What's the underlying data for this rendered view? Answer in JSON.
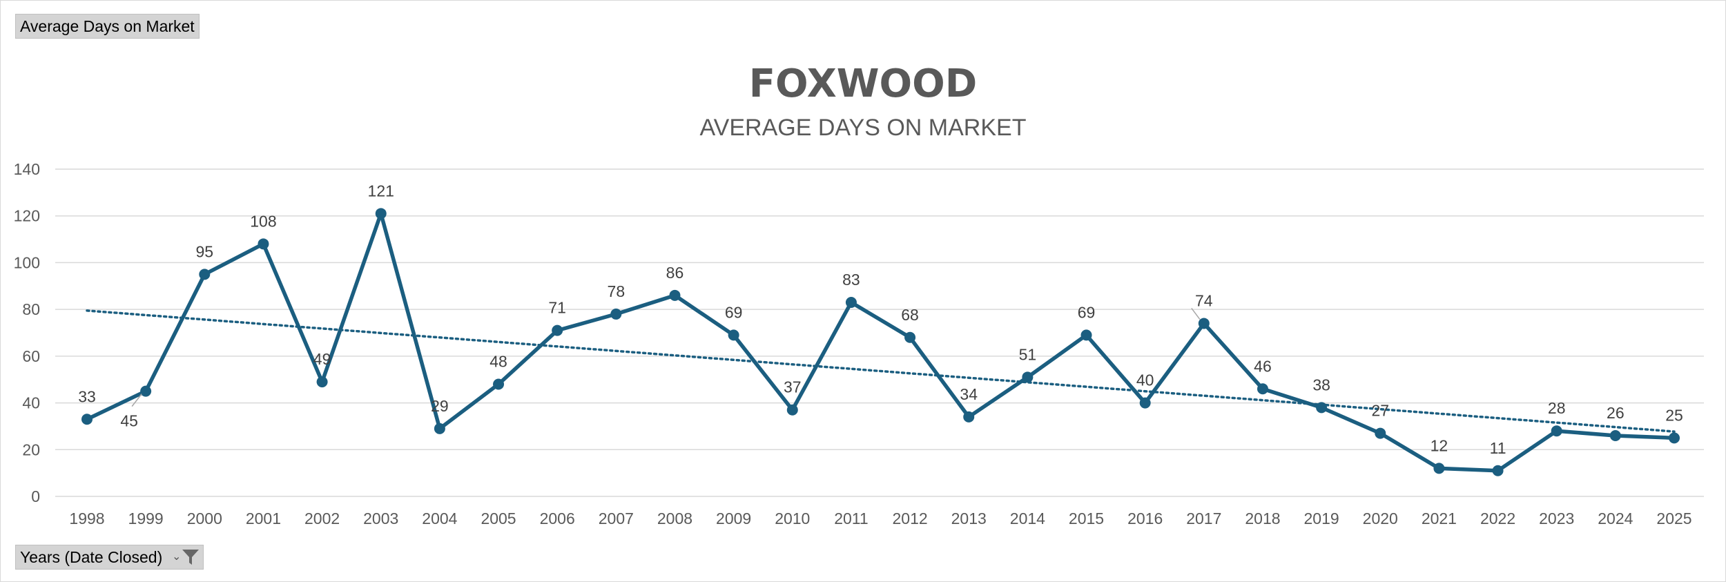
{
  "field_buttons": {
    "top_label": "Average Days on Market",
    "bottom_label": "Years (Date Closed)"
  },
  "icons": {
    "filter": "filter-funnel-icon",
    "dropdown": "dropdown-arrow-icon"
  },
  "chart_data": {
    "type": "line",
    "title": "FOXWOOD",
    "subtitle": "AVERAGE DAYS ON MARKET",
    "xlabel": "",
    "ylabel": "",
    "categories": [
      "1998",
      "1999",
      "2000",
      "2001",
      "2002",
      "2003",
      "2004",
      "2005",
      "2006",
      "2007",
      "2008",
      "2009",
      "2010",
      "2011",
      "2012",
      "2013",
      "2014",
      "2015",
      "2016",
      "2017",
      "2018",
      "2019",
      "2020",
      "2021",
      "2022",
      "2023",
      "2024",
      "2025"
    ],
    "series": [
      {
        "values": [
          33,
          45,
          95,
          108,
          49,
          121,
          29,
          48,
          71,
          78,
          86,
          69,
          37,
          83,
          68,
          34,
          51,
          69,
          40,
          74,
          46,
          38,
          27,
          12,
          11,
          28,
          26,
          25
        ],
        "color": "#1b5e80"
      }
    ],
    "trendline": {
      "type": "linear",
      "style": "dotted",
      "color": "#1b5e80"
    },
    "ylim": [
      0,
      140
    ],
    "yticks": [
      0,
      20,
      40,
      60,
      80,
      100,
      120,
      140
    ],
    "grid": true,
    "legend": "none"
  }
}
